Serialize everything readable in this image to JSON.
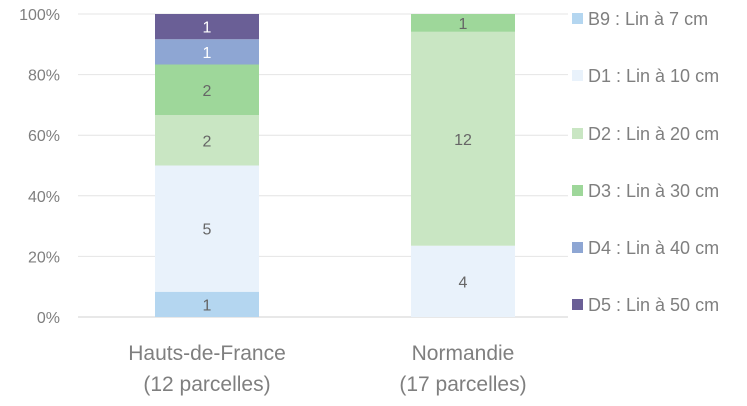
{
  "chart_data": {
    "type": "bar",
    "stacked": true,
    "percent": true,
    "categories": [
      "Hauts-de-France\n(12 parcelles)",
      "Normandie\n(17 parcelles)"
    ],
    "series": [
      {
        "name": "B9 : Lin à 7 cm",
        "values": [
          1,
          0
        ],
        "color": "#b4d6f0",
        "label_color": "#666666"
      },
      {
        "name": "D1 : Lin à 10 cm",
        "values": [
          5,
          4
        ],
        "color": "#e9f2fb",
        "label_color": "#666666"
      },
      {
        "name": "D2 : Lin à 20 cm",
        "values": [
          2,
          12
        ],
        "color": "#c9e6c3",
        "label_color": "#666666"
      },
      {
        "name": "D3 : Lin à 30 cm",
        "values": [
          2,
          1
        ],
        "color": "#9ed79a",
        "label_color": "#666666"
      },
      {
        "name": "D4 : Lin à 40 cm",
        "values": [
          1,
          0
        ],
        "color": "#8ea6d3",
        "label_color": "#ffffff"
      },
      {
        "name": "D5 : Lin à 50 cm",
        "values": [
          1,
          0
        ],
        "color": "#6a5f96",
        "label_color": "#ffffff"
      }
    ],
    "yticks": [
      "0%",
      "20%",
      "40%",
      "60%",
      "80%",
      "100%"
    ],
    "ylim": [
      0,
      100
    ],
    "grid": true,
    "legend": "right"
  }
}
